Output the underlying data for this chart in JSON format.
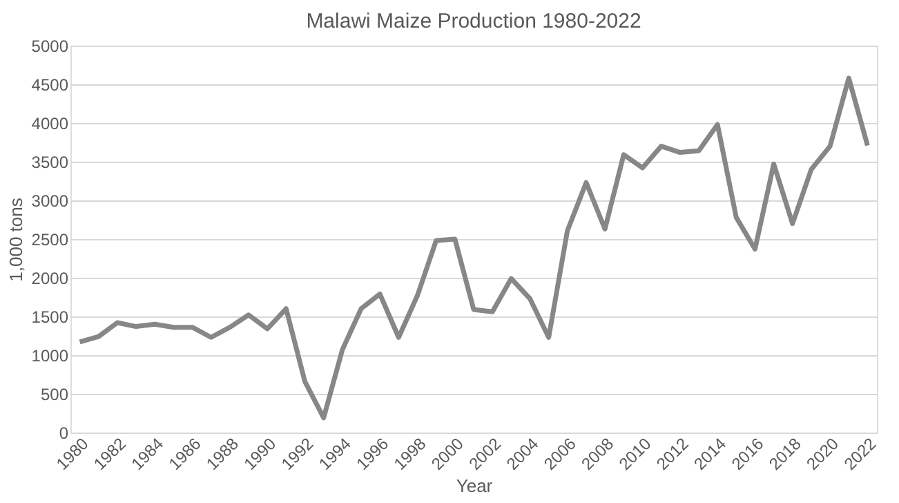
{
  "chart_data": {
    "type": "line",
    "title": "Malawi Maize Production 1980-2022",
    "xlabel": "Year",
    "ylabel": "1,000 tons",
    "categories": [
      "1980",
      null,
      "1982",
      null,
      "1984",
      null,
      "1986",
      null,
      "1988",
      null,
      "1990",
      null,
      "1992",
      null,
      "1994",
      null,
      "1996",
      null,
      "1998",
      null,
      "2000",
      null,
      "2002",
      null,
      "2004",
      null,
      "2006",
      null,
      "2008",
      null,
      "2010",
      null,
      "2012",
      null,
      "2014",
      null,
      "2016",
      null,
      "2018",
      null,
      "2020",
      null,
      "2022"
    ],
    "series": [
      {
        "color": "#878787",
        "values": [
          1170,
          1240,
          1420,
          1370,
          1400,
          1360,
          1360,
          1230,
          1360,
          1520,
          1340,
          1600,
          660,
          190,
          1070,
          1600,
          1790,
          1230,
          1770,
          2480,
          2500,
          1590,
          1560,
          1990,
          1730,
          1230,
          2610,
          3230,
          2630,
          3590,
          3420,
          3700,
          3620,
          3640,
          3980,
          2780,
          2370,
          3470,
          2700,
          3400,
          3700,
          4580,
          3710
        ]
      }
    ],
    "ylim": [
      0,
      5000
    ],
    "yticks": [
      0,
      500,
      1000,
      1500,
      2000,
      2500,
      3000,
      3500,
      4000,
      4500,
      5000
    ],
    "grid": "y",
    "marker": "none",
    "line_style": "solid"
  }
}
